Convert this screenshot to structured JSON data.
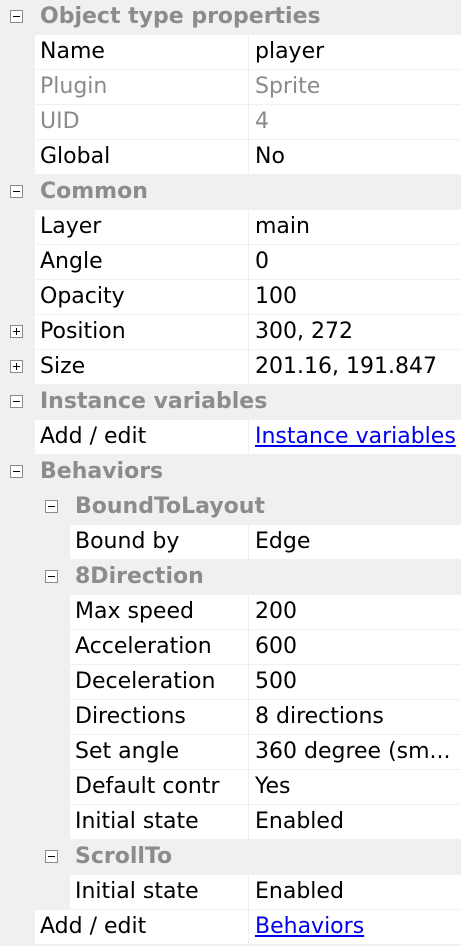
{
  "object_type": {
    "heading": "Object type properties",
    "name_label": "Name",
    "name_value": "player",
    "plugin_label": "Plugin",
    "plugin_value": "Sprite",
    "uid_label": "UID",
    "uid_value": "4",
    "global_label": "Global",
    "global_value": "No"
  },
  "common": {
    "heading": "Common",
    "layer_label": "Layer",
    "layer_value": "main",
    "angle_label": "Angle",
    "angle_value": "0",
    "opacity_label": "Opacity",
    "opacity_value": "100",
    "position_label": "Position",
    "position_value": "300, 272",
    "size_label": "Size",
    "size_value": "201.16, 191.847"
  },
  "instance_variables": {
    "heading": "Instance variables",
    "add_edit_label": "Add / edit",
    "link": "Instance variables"
  },
  "behaviors": {
    "heading": "Behaviors",
    "bound_to_layout": {
      "heading": "BoundToLayout",
      "bound_by_label": "Bound by",
      "bound_by_value": "Edge"
    },
    "eight_direction": {
      "heading": "8Direction",
      "max_speed_label": "Max speed",
      "max_speed_value": "200",
      "acceleration_label": "Acceleration",
      "acceleration_value": "600",
      "deceleration_label": "Deceleration",
      "deceleration_value": "500",
      "directions_label": "Directions",
      "directions_value": "8 directions",
      "set_angle_label": "Set angle",
      "set_angle_value": "360 degree (sm...",
      "default_controls_label": "Default contr",
      "default_controls_value": "Yes",
      "initial_state_label": "Initial state",
      "initial_state_value": "Enabled"
    },
    "scroll_to": {
      "heading": "ScrollTo",
      "initial_state_label": "Initial state",
      "initial_state_value": "Enabled"
    },
    "add_edit_label": "Add / edit",
    "link": "Behaviors"
  }
}
